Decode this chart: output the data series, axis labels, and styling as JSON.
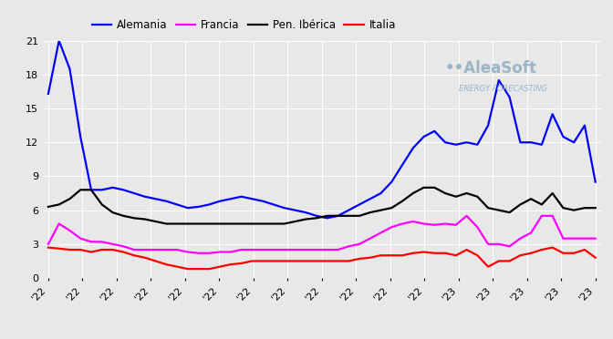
{
  "series": {
    "Alemania": {
      "color": "#0000ff",
      "values": [
        16.3,
        21.0,
        18.5,
        12.5,
        7.8,
        7.8,
        8.0,
        7.8,
        7.5,
        7.2,
        7.0,
        6.8,
        6.5,
        6.2,
        6.3,
        6.5,
        6.8,
        7.0,
        7.2,
        7.0,
        6.8,
        6.5,
        6.2,
        6.0,
        5.8,
        5.5,
        5.3,
        5.5,
        6.0,
        6.5,
        7.0,
        7.5,
        8.5,
        10.0,
        11.5,
        12.5,
        13.0,
        12.0,
        11.8,
        12.0,
        11.8,
        13.5,
        17.5,
        16.0,
        12.0,
        12.0,
        11.8,
        14.5,
        12.5,
        12.0,
        13.5,
        8.5
      ]
    },
    "Francia": {
      "color": "#ff00ff",
      "values": [
        3.0,
        4.8,
        4.2,
        3.5,
        3.2,
        3.2,
        3.0,
        2.8,
        2.5,
        2.5,
        2.5,
        2.5,
        2.5,
        2.3,
        2.2,
        2.2,
        2.3,
        2.3,
        2.5,
        2.5,
        2.5,
        2.5,
        2.5,
        2.5,
        2.5,
        2.5,
        2.5,
        2.5,
        2.8,
        3.0,
        3.5,
        4.0,
        4.5,
        4.8,
        5.0,
        4.8,
        4.7,
        4.8,
        4.7,
        5.5,
        4.5,
        3.0,
        3.0,
        2.8,
        3.5,
        4.0,
        5.5,
        5.5,
        3.5,
        3.5,
        3.5,
        3.5
      ]
    },
    "Pen. Iberica": {
      "color": "#000000",
      "values": [
        6.3,
        6.5,
        7.0,
        7.8,
        7.8,
        6.5,
        5.8,
        5.5,
        5.3,
        5.2,
        5.0,
        4.8,
        4.8,
        4.8,
        4.8,
        4.8,
        4.8,
        4.8,
        4.8,
        4.8,
        4.8,
        4.8,
        4.8,
        5.0,
        5.2,
        5.3,
        5.5,
        5.5,
        5.5,
        5.5,
        5.8,
        6.0,
        6.2,
        6.8,
        7.5,
        8.0,
        8.0,
        7.5,
        7.2,
        7.5,
        7.2,
        6.2,
        6.0,
        5.8,
        6.5,
        7.0,
        6.5,
        7.5,
        6.2,
        6.0,
        6.2,
        6.2
      ]
    },
    "Italia": {
      "color": "#ff0000",
      "values": [
        2.7,
        2.6,
        2.5,
        2.5,
        2.3,
        2.5,
        2.5,
        2.3,
        2.0,
        1.8,
        1.5,
        1.2,
        1.0,
        0.8,
        0.8,
        0.8,
        1.0,
        1.2,
        1.3,
        1.5,
        1.5,
        1.5,
        1.5,
        1.5,
        1.5,
        1.5,
        1.5,
        1.5,
        1.5,
        1.7,
        1.8,
        2.0,
        2.0,
        2.0,
        2.2,
        2.3,
        2.2,
        2.2,
        2.0,
        2.5,
        2.0,
        1.0,
        1.5,
        1.5,
        2.0,
        2.2,
        2.5,
        2.7,
        2.2,
        2.2,
        2.5,
        1.8
      ]
    }
  },
  "ylim": [
    0,
    21
  ],
  "yticks": [
    0,
    3,
    6,
    9,
    12,
    15,
    18,
    21
  ],
  "n_points": 52,
  "x_tick_count": 17,
  "x_tick_labels_22": 12,
  "background_color": "#e8e8e8",
  "grid_color": "#ffffff",
  "legend_labels": [
    "Alemania",
    "Francia",
    "Pen. Ibérica",
    "Italia"
  ],
  "legend_colors": [
    "#0000ff",
    "#ff00ff",
    "#000000",
    "#ff0000"
  ],
  "line_width": 1.6,
  "figsize": [
    6.72,
    3.72
  ],
  "dpi": 100
}
